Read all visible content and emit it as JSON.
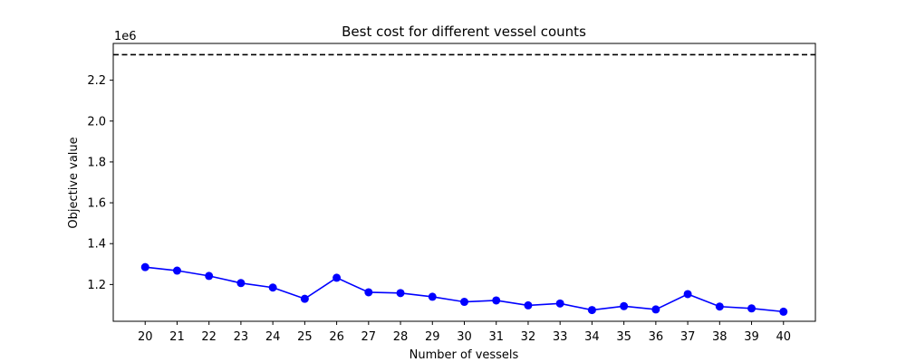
{
  "chart_data": {
    "type": "line",
    "title": "Best cost for different vessel counts",
    "xlabel": "Number of vessels",
    "ylabel": "Objective value",
    "y_offset_label": "1e6",
    "x": [
      20,
      21,
      22,
      23,
      24,
      25,
      26,
      27,
      28,
      29,
      30,
      31,
      32,
      33,
      34,
      35,
      36,
      37,
      38,
      39,
      40
    ],
    "xlim": [
      19,
      41
    ],
    "ylim": [
      1.02,
      2.38
    ],
    "y_ticks": [
      1.2,
      1.4,
      1.6,
      1.8,
      2.0,
      2.2
    ],
    "y_tick_labels": [
      "1.2",
      "1.4",
      "1.6",
      "1.8",
      "2.0",
      "2.2"
    ],
    "series": [
      {
        "values": [
          1.285,
          1.268,
          1.242,
          1.207,
          1.185,
          1.13,
          1.233,
          1.162,
          1.158,
          1.14,
          1.115,
          1.122,
          1.098,
          1.107,
          1.075,
          1.094,
          1.078,
          1.153,
          1.092,
          1.083,
          1.067
        ],
        "color": "#0000ff",
        "marker": "circle"
      }
    ],
    "reference_line": {
      "value": 2.325,
      "style": "dashed",
      "color": "#000000"
    },
    "grid": false,
    "legend": "none"
  }
}
